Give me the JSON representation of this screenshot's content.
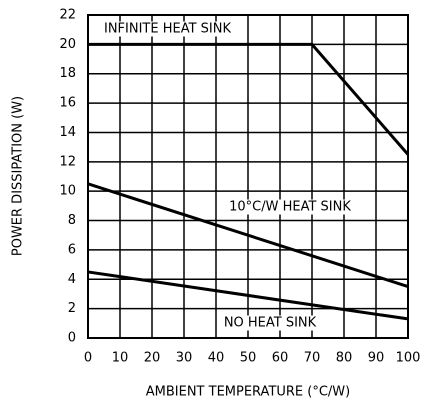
{
  "chart_data": {
    "type": "line",
    "xlabel": "AMBIENT TEMPERATURE (°C/W)",
    "ylabel": "POWER DISSIPATION (W)",
    "series": [
      {
        "name": "INFINITE HEAT SINK",
        "color": "#000000",
        "x": [
          0,
          70,
          100
        ],
        "values": [
          20,
          20,
          12.5
        ]
      },
      {
        "name": "10°C/W HEAT SINK",
        "color": "#000000",
        "x": [
          0,
          100
        ],
        "values": [
          10.5,
          3.5
        ]
      },
      {
        "name": "NO HEAT SINK",
        "color": "#000000",
        "x": [
          0,
          100
        ],
        "values": [
          4.5,
          1.3
        ]
      }
    ],
    "xlim": [
      0,
      100
    ],
    "xticks": [
      0,
      10,
      20,
      30,
      40,
      50,
      60,
      70,
      80,
      90,
      100
    ],
    "ylim": [
      0,
      22
    ],
    "yticks": [
      0,
      2,
      4,
      6,
      8,
      10,
      12,
      14,
      16,
      18,
      20,
      22
    ],
    "grid": true
  }
}
